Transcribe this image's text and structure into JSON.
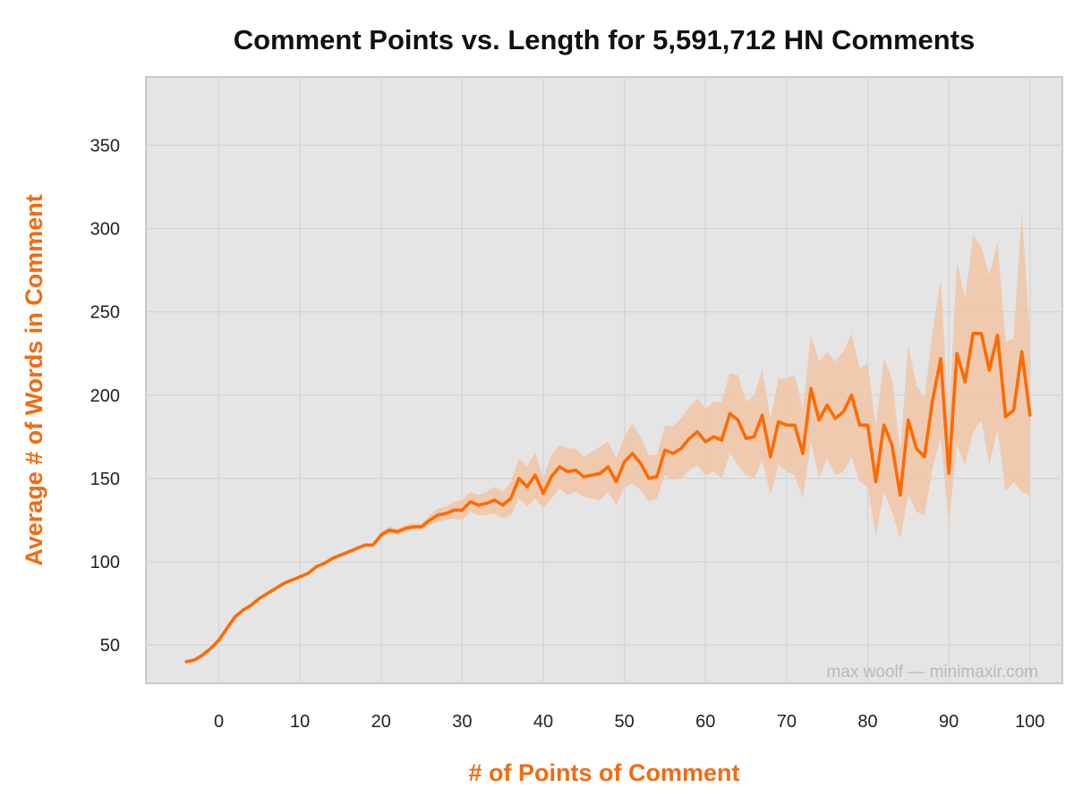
{
  "chart_data": {
    "type": "line",
    "title": "Comment Points vs. Length for 5,591,712 HN Comments",
    "xlabel": "# of Points of Comment",
    "ylabel": "Average # of Words in Comment",
    "watermark": "max woolf — minimaxir.com",
    "xlim": [
      -9,
      104
    ],
    "ylim": [
      27,
      391
    ],
    "x_ticks": [
      0,
      10,
      20,
      30,
      40,
      50,
      60,
      70,
      80,
      90,
      100
    ],
    "x_tick_labels": [
      "0",
      "10",
      "20",
      "30",
      "40",
      "50",
      "60",
      "70",
      "80",
      "90",
      "100"
    ],
    "y_ticks": [
      50,
      100,
      150,
      200,
      250,
      300,
      350
    ],
    "y_tick_labels": [
      "50",
      "100",
      "150",
      "200",
      "250",
      "300",
      "350"
    ],
    "grid": true,
    "colors": {
      "line": "#ff6a00",
      "band": "#f0c6a9",
      "panel": "#e5e5e5",
      "grid": "#d4d4d4",
      "axis_label": "#f26b11"
    },
    "series": [
      {
        "x": [
          -4,
          -3,
          -2,
          -1,
          0,
          1,
          2,
          3,
          4,
          5,
          6,
          7,
          8,
          9,
          10,
          11,
          12,
          13,
          14,
          15,
          16,
          17,
          18,
          19,
          20,
          21,
          22,
          23,
          24,
          25,
          26,
          27,
          28,
          29,
          30,
          31,
          32,
          33,
          34,
          35,
          36,
          37,
          38,
          39,
          40,
          41,
          42,
          43,
          44,
          45,
          46,
          47,
          48,
          49,
          50,
          51,
          52,
          53,
          54,
          55,
          56,
          57,
          58,
          59,
          60,
          61,
          62,
          63,
          64,
          65,
          66,
          67,
          68,
          69,
          70,
          71,
          72,
          73,
          74,
          75,
          76,
          77,
          78,
          79,
          80,
          81,
          82,
          83,
          84,
          85,
          86,
          87,
          88,
          89,
          90,
          91,
          92,
          93,
          94,
          95,
          96,
          97,
          98,
          99,
          100
        ],
        "y": [
          40,
          41,
          44,
          48,
          53,
          60,
          67,
          71,
          74,
          78,
          81,
          84,
          87,
          89,
          91,
          93,
          97,
          99,
          102,
          104,
          106,
          108,
          110,
          110,
          116,
          119,
          118,
          120,
          121,
          121,
          125,
          128,
          129,
          131,
          131,
          136,
          134,
          135,
          137,
          134,
          138,
          150,
          145,
          152,
          141,
          151,
          157,
          154,
          155,
          151,
          152,
          153,
          157,
          148,
          160,
          165,
          159,
          150,
          151,
          167,
          165,
          168,
          174,
          178,
          172,
          175,
          173,
          189,
          185,
          174,
          175,
          188,
          163,
          184,
          182,
          182,
          165,
          204,
          185,
          194,
          186,
          190,
          200,
          182,
          182,
          148,
          182,
          170,
          140,
          185,
          168,
          163,
          197,
          222,
          153,
          225,
          208,
          237,
          237,
          215,
          236,
          187,
          191,
          226,
          188
        ],
        "lower": [
          40,
          41,
          44,
          48,
          53,
          60,
          67,
          71,
          74,
          78,
          81,
          84,
          87,
          89,
          91,
          93,
          97,
          99,
          102,
          104,
          106,
          108,
          109,
          109,
          114,
          117,
          116,
          118,
          119,
          119,
          122,
          124,
          125,
          126,
          125,
          130,
          128,
          128,
          129,
          126,
          128,
          138,
          133,
          138,
          132,
          138,
          144,
          140,
          142,
          139,
          138,
          137,
          142,
          134,
          145,
          147,
          143,
          136,
          138,
          152,
          149,
          150,
          155,
          158,
          152,
          154,
          150,
          165,
          158,
          152,
          150,
          161,
          140,
          158,
          154,
          152,
          138,
          172,
          150,
          162,
          152,
          154,
          163,
          148,
          145,
          115,
          142,
          130,
          114,
          140,
          130,
          128,
          156,
          175,
          122,
          170,
          158,
          178,
          185,
          158,
          180,
          142,
          148,
          142,
          140
        ],
        "upper": [
          40,
          41,
          44,
          48,
          53,
          60,
          67,
          71,
          74,
          78,
          81,
          84,
          87,
          89,
          91,
          93,
          97,
          99,
          102,
          104,
          106,
          108,
          111,
          111,
          118,
          121,
          120,
          122,
          123,
          123,
          128,
          132,
          133,
          136,
          137,
          142,
          140,
          142,
          145,
          142,
          148,
          162,
          157,
          166,
          150,
          164,
          170,
          168,
          168,
          163,
          166,
          169,
          172,
          162,
          175,
          183,
          175,
          164,
          164,
          182,
          181,
          186,
          193,
          198,
          192,
          196,
          196,
          213,
          212,
          196,
          200,
          215,
          186,
          210,
          210,
          212,
          192,
          236,
          220,
          226,
          220,
          226,
          237,
          216,
          219,
          181,
          222,
          210,
          166,
          230,
          206,
          198,
          238,
          269,
          184,
          280,
          258,
          296,
          289,
          272,
          292,
          232,
          234,
          310,
          236
        ]
      }
    ]
  }
}
